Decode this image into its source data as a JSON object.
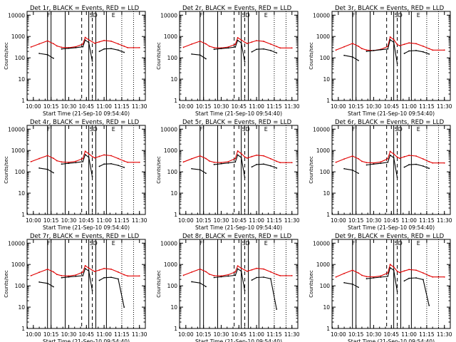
{
  "colors": {
    "events": "#000000",
    "lld": "#e00000",
    "axes": "#000000",
    "background": "#ffffff"
  },
  "common": {
    "xlabel": "Start Time (21-Sep-10 09:54:40)",
    "ylabel": "Counts/sec",
    "x_tick_labels": [
      "10:00",
      "10:15",
      "10:30",
      "10:45",
      "11:00",
      "11:15",
      "11:30"
    ],
    "y_tick_labels": [
      "1",
      "10",
      "100",
      "1000",
      "10000"
    ],
    "marker_labels": [
      {
        "text": "F",
        "x": "10:13"
      },
      {
        "text": "SD",
        "x": "10:51"
      },
      {
        "text": "E",
        "x": "11:08"
      }
    ]
  },
  "chart_data": [
    {
      "type": "line",
      "title": "Det 1r, BLACK = Events, RED = LLD",
      "xlabel": "Start Time (21-Sep-10 09:54:40)",
      "ylabel": "Counts/sec",
      "y_scale": "log",
      "ylim": [
        1,
        15000
      ],
      "x": [
        "09:58",
        "10:05",
        "10:12",
        "10:17",
        "10:20",
        "10:24",
        "10:30",
        "10:36",
        "10:42",
        "10:44",
        "10:47",
        "10:50",
        "10:52",
        "10:56",
        "11:00",
        "11:06",
        "11:12",
        "11:17",
        "11:20",
        "11:25",
        "11:30"
      ],
      "series": [
        {
          "name": "LLD",
          "color": "red",
          "values": [
            320,
            450,
            620,
            460,
            360,
            310,
            300,
            330,
            440,
            900,
            700,
            560,
            480,
            560,
            650,
            600,
            450,
            350,
            300,
            300,
            300
          ]
        },
        {
          "name": "Events",
          "color": "black",
          "values": [
            null,
            160,
            140,
            95,
            null,
            260,
            280,
            300,
            330,
            680,
            520,
            70,
            null,
            200,
            260,
            270,
            230,
            180,
            null,
            null,
            null
          ]
        }
      ],
      "vertical_lines_solid": [
        "10:12",
        "10:15",
        "10:27",
        "10:47",
        "10:53",
        "11:02"
      ],
      "vertical_lines_dashed": [
        "10:41",
        "10:50"
      ],
      "vertical_lines_dotted": [
        "11:15",
        "11:25"
      ]
    },
    {
      "type": "line",
      "title": "Det 2r, BLACK = Events, RED = LLD",
      "xlabel": "Start Time (21-Sep-10 09:54:40)",
      "ylabel": "Counts/sec",
      "y_scale": "log",
      "ylim": [
        1,
        15000
      ],
      "x": [
        "09:58",
        "10:05",
        "10:12",
        "10:17",
        "10:20",
        "10:24",
        "10:30",
        "10:36",
        "10:42",
        "10:44",
        "10:47",
        "10:50",
        "10:52",
        "10:56",
        "11:00",
        "11:06",
        "11:12",
        "11:17",
        "11:20",
        "11:25",
        "11:30"
      ],
      "series": [
        {
          "name": "LLD",
          "color": "red",
          "values": [
            310,
            440,
            600,
            450,
            350,
            300,
            290,
            320,
            430,
            880,
            690,
            540,
            470,
            550,
            640,
            590,
            440,
            340,
            290,
            290,
            290
          ]
        },
        {
          "name": "Events",
          "color": "black",
          "values": [
            null,
            150,
            135,
            90,
            null,
            250,
            270,
            290,
            320,
            660,
            500,
            65,
            null,
            190,
            250,
            260,
            220,
            170,
            null,
            null,
            null
          ]
        }
      ],
      "vertical_lines_solid": [
        "10:12",
        "10:15",
        "10:27",
        "10:47",
        "10:53",
        "11:02"
      ],
      "vertical_lines_dashed": [
        "10:41",
        "10:50"
      ],
      "vertical_lines_dotted": [
        "11:15",
        "11:25"
      ]
    },
    {
      "type": "line",
      "title": "Det 3r, BLACK = Events, RED = LLD",
      "xlabel": "Start Time (21-Sep-10 09:54:40)",
      "ylabel": "Counts/sec",
      "y_scale": "log",
      "ylim": [
        1,
        15000
      ],
      "x": [
        "09:58",
        "10:05",
        "10:12",
        "10:17",
        "10:20",
        "10:24",
        "10:30",
        "10:36",
        "10:42",
        "10:44",
        "10:47",
        "10:50",
        "10:52",
        "10:56",
        "11:00",
        "11:06",
        "11:12",
        "11:17",
        "11:20",
        "11:25",
        "11:30"
      ],
      "series": [
        {
          "name": "LLD",
          "color": "red",
          "values": [
            230,
            330,
            470,
            350,
            270,
            230,
            220,
            250,
            340,
            950,
            720,
            420,
            370,
            430,
            500,
            460,
            350,
            270,
            230,
            230,
            230
          ]
        },
        {
          "name": "Events",
          "color": "black",
          "values": [
            null,
            130,
            110,
            75,
            null,
            200,
            220,
            240,
            260,
            700,
            540,
            55,
            null,
            160,
            210,
            220,
            190,
            150,
            null,
            null,
            null
          ]
        }
      ],
      "vertical_lines_solid": [
        "10:12",
        "10:15",
        "10:27",
        "10:47",
        "10:53",
        "11:02"
      ],
      "vertical_lines_dashed": [
        "10:41",
        "10:50"
      ],
      "vertical_lines_dotted": [
        "11:15",
        "11:25"
      ]
    },
    {
      "type": "line",
      "title": "Det 4r, BLACK = Events, RED = LLD",
      "xlabel": "Start Time (21-Sep-10 09:54:40)",
      "ylabel": "Counts/sec",
      "y_scale": "log",
      "ylim": [
        1,
        15000
      ],
      "x": [
        "09:58",
        "10:05",
        "10:12",
        "10:17",
        "10:20",
        "10:24",
        "10:30",
        "10:36",
        "10:42",
        "10:44",
        "10:47",
        "10:50",
        "10:52",
        "10:56",
        "11:00",
        "11:06",
        "11:12",
        "11:17",
        "11:20",
        "11:25",
        "11:30"
      ],
      "series": [
        {
          "name": "LLD",
          "color": "red",
          "values": [
            300,
            420,
            580,
            430,
            330,
            290,
            280,
            310,
            420,
            920,
            700,
            520,
            450,
            530,
            620,
            570,
            420,
            320,
            280,
            280,
            280
          ]
        },
        {
          "name": "Events",
          "color": "black",
          "values": [
            null,
            150,
            130,
            90,
            null,
            230,
            250,
            270,
            300,
            640,
            480,
            60,
            null,
            180,
            230,
            240,
            200,
            160,
            null,
            null,
            null
          ]
        }
      ],
      "vertical_lines_solid": [
        "10:12",
        "10:15",
        "10:27",
        "10:47",
        "10:53",
        "11:02"
      ],
      "vertical_lines_dashed": [
        "10:41",
        "10:50"
      ],
      "vertical_lines_dotted": [
        "11:15",
        "11:25"
      ]
    },
    {
      "type": "line",
      "title": "Det 5r, BLACK = Events, RED = LLD",
      "xlabel": "Start Time (21-Sep-10 09:54:40)",
      "ylabel": "Counts/sec",
      "y_scale": "log",
      "ylim": [
        1,
        15000
      ],
      "x": [
        "09:58",
        "10:05",
        "10:12",
        "10:17",
        "10:20",
        "10:24",
        "10:30",
        "10:36",
        "10:42",
        "10:44",
        "10:47",
        "10:50",
        "10:52",
        "10:56",
        "11:00",
        "11:06",
        "11:12",
        "11:17",
        "11:20",
        "11:25",
        "11:30"
      ],
      "series": [
        {
          "name": "LLD",
          "color": "red",
          "values": [
            290,
            410,
            560,
            420,
            320,
            280,
            270,
            300,
            420,
            950,
            720,
            500,
            440,
            520,
            600,
            560,
            410,
            310,
            270,
            270,
            270
          ]
        },
        {
          "name": "Events",
          "color": "black",
          "values": [
            null,
            140,
            125,
            85,
            null,
            220,
            240,
            260,
            290,
            620,
            470,
            55,
            null,
            170,
            220,
            230,
            190,
            150,
            null,
            null,
            null
          ]
        }
      ],
      "vertical_lines_solid": [
        "10:12",
        "10:15",
        "10:27",
        "10:47",
        "10:53",
        "11:02"
      ],
      "vertical_lines_dashed": [
        "10:41",
        "10:50"
      ],
      "vertical_lines_dotted": [
        "11:15",
        "11:25"
      ]
    },
    {
      "type": "line",
      "title": "Det 6r, BLACK = Events, RED = LLD",
      "xlabel": "Start Time (21-Sep-10 09:54:40)",
      "ylabel": "Counts/sec",
      "y_scale": "log",
      "ylim": [
        1,
        15000
      ],
      "x": [
        "09:58",
        "10:05",
        "10:12",
        "10:17",
        "10:20",
        "10:24",
        "10:30",
        "10:36",
        "10:42",
        "10:44",
        "10:47",
        "10:50",
        "10:52",
        "10:56",
        "11:00",
        "11:06",
        "11:12",
        "11:17",
        "11:20",
        "11:25",
        "11:30"
      ],
      "series": [
        {
          "name": "LLD",
          "color": "red",
          "values": [
            280,
            400,
            550,
            410,
            310,
            270,
            260,
            290,
            410,
            900,
            690,
            490,
            430,
            510,
            590,
            550,
            400,
            300,
            260,
            260,
            260
          ]
        },
        {
          "name": "Events",
          "color": "black",
          "values": [
            null,
            140,
            120,
            85,
            null,
            210,
            230,
            250,
            280,
            600,
            460,
            55,
            null,
            165,
            215,
            225,
            185,
            145,
            null,
            null,
            null
          ]
        }
      ],
      "vertical_lines_solid": [
        "10:12",
        "10:15",
        "10:27",
        "10:47",
        "10:53",
        "11:02"
      ],
      "vertical_lines_dashed": [
        "10:41",
        "10:50"
      ],
      "vertical_lines_dotted": [
        "11:15",
        "11:25"
      ]
    },
    {
      "type": "line",
      "title": "Det 7r, BLACK = Events, RED = LLD",
      "xlabel": "Start Time (21-Sep-10 09:54:40)",
      "ylabel": "Counts/sec",
      "y_scale": "log",
      "ylim": [
        1,
        15000
      ],
      "x": [
        "09:58",
        "10:05",
        "10:12",
        "10:17",
        "10:20",
        "10:24",
        "10:30",
        "10:36",
        "10:42",
        "10:44",
        "10:47",
        "10:50",
        "10:52",
        "10:56",
        "11:00",
        "11:06",
        "11:12",
        "11:17",
        "11:20",
        "11:25",
        "11:30"
      ],
      "series": [
        {
          "name": "LLD",
          "color": "red",
          "values": [
            300,
            430,
            600,
            450,
            340,
            300,
            290,
            320,
            440,
            880,
            680,
            540,
            470,
            550,
            650,
            600,
            440,
            330,
            290,
            290,
            290
          ]
        },
        {
          "name": "Events",
          "color": "black",
          "values": [
            null,
            150,
            130,
            90,
            null,
            240,
            260,
            280,
            300,
            640,
            500,
            60,
            null,
            180,
            240,
            250,
            210,
            10,
            null,
            null,
            null
          ]
        }
      ],
      "vertical_lines_solid": [
        "10:12",
        "10:15",
        "10:27",
        "10:47",
        "10:53",
        "11:02"
      ],
      "vertical_lines_dashed": [
        "10:41",
        "10:50"
      ],
      "vertical_lines_dotted": [
        "11:15",
        "11:25"
      ]
    },
    {
      "type": "line",
      "title": "Det 8r, BLACK = Events, RED = LLD",
      "xlabel": "Start Time (21-Sep-10 09:54:40)",
      "ylabel": "Counts/sec",
      "y_scale": "log",
      "ylim": [
        1,
        15000
      ],
      "x": [
        "09:58",
        "10:05",
        "10:12",
        "10:17",
        "10:20",
        "10:24",
        "10:30",
        "10:36",
        "10:42",
        "10:44",
        "10:47",
        "10:50",
        "10:52",
        "10:56",
        "11:00",
        "11:06",
        "11:12",
        "11:17",
        "11:20",
        "11:25",
        "11:30"
      ],
      "series": [
        {
          "name": "LLD",
          "color": "red",
          "values": [
            310,
            440,
            610,
            460,
            350,
            300,
            290,
            330,
            450,
            860,
            670,
            550,
            480,
            560,
            660,
            610,
            450,
            340,
            300,
            300,
            300
          ]
        },
        {
          "name": "Events",
          "color": "black",
          "values": [
            null,
            155,
            135,
            92,
            null,
            245,
            265,
            285,
            310,
            620,
            490,
            60,
            null,
            185,
            245,
            255,
            215,
            8,
            null,
            null,
            null
          ]
        }
      ],
      "vertical_lines_solid": [
        "10:12",
        "10:15",
        "10:27",
        "10:47",
        "10:53",
        "11:02"
      ],
      "vertical_lines_dashed": [
        "10:41",
        "10:50"
      ],
      "vertical_lines_dotted": [
        "11:15",
        "11:25"
      ]
    },
    {
      "type": "line",
      "title": "Det 9r, BLACK = Events, RED = LLD",
      "xlabel": "Start Time (21-Sep-10 09:54:40)",
      "ylabel": "Counts/sec",
      "y_scale": "log",
      "ylim": [
        1,
        15000
      ],
      "x": [
        "09:58",
        "10:05",
        "10:12",
        "10:17",
        "10:20",
        "10:24",
        "10:30",
        "10:36",
        "10:42",
        "10:44",
        "10:47",
        "10:50",
        "10:52",
        "10:56",
        "11:00",
        "11:06",
        "11:12",
        "11:17",
        "11:20",
        "11:25",
        "11:30"
      ],
      "series": [
        {
          "name": "LLD",
          "color": "red",
          "values": [
            260,
            380,
            540,
            400,
            310,
            270,
            260,
            290,
            400,
            1000,
            760,
            480,
            420,
            500,
            580,
            540,
            400,
            300,
            260,
            260,
            260
          ]
        },
        {
          "name": "Events",
          "color": "black",
          "values": [
            null,
            140,
            120,
            85,
            null,
            215,
            235,
            255,
            280,
            700,
            540,
            55,
            null,
            170,
            225,
            235,
            195,
            12,
            null,
            null,
            null
          ]
        }
      ],
      "vertical_lines_solid": [
        "10:12",
        "10:15",
        "10:27",
        "10:47",
        "10:53",
        "11:02"
      ],
      "vertical_lines_dashed": [
        "10:41",
        "10:50"
      ],
      "vertical_lines_dotted": [
        "11:15",
        "11:25"
      ]
    }
  ]
}
